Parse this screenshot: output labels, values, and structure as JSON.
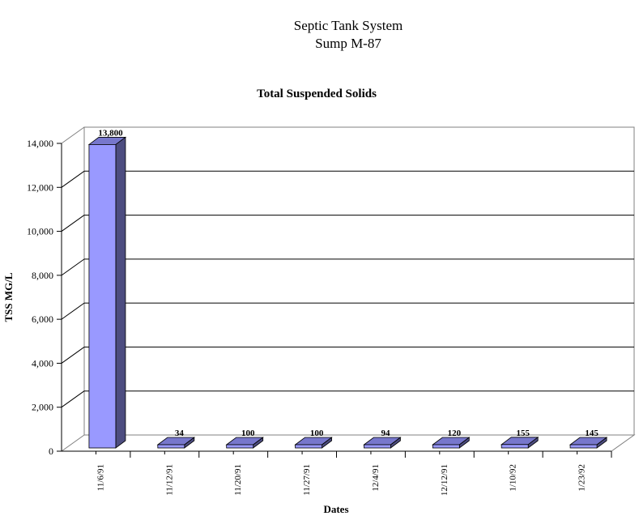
{
  "chart_data": {
    "type": "bar",
    "title": "Septic Tank System",
    "subtitle": "Sump M-87",
    "chart_title": "Total Suspended Solids",
    "xlabel": "Dates",
    "ylabel": "TSS MG/L",
    "categories": [
      "11/6/91",
      "11/12/91",
      "11/20/91",
      "11/27/91",
      "12/4/91",
      "12/12/91",
      "1/10/92",
      "1/23/92"
    ],
    "values": [
      13800,
      34,
      100,
      100,
      94,
      120,
      155,
      145
    ],
    "data_labels": [
      "13,800",
      "34",
      "100",
      "100",
      "94",
      "120",
      "155",
      "145"
    ],
    "ylim": [
      0,
      14000
    ],
    "yticks": [
      0,
      2000,
      4000,
      6000,
      8000,
      10000,
      12000,
      14000
    ],
    "ytick_labels": [
      "0",
      "2,000",
      "4,000",
      "6,000",
      "8,000",
      "10,000",
      "12,000",
      "14,000"
    ],
    "grid": true,
    "legend": "none",
    "colors": {
      "bar_front": "#9999ff",
      "bar_top": "#7777cc",
      "bar_side": "#4d4d80"
    }
  }
}
